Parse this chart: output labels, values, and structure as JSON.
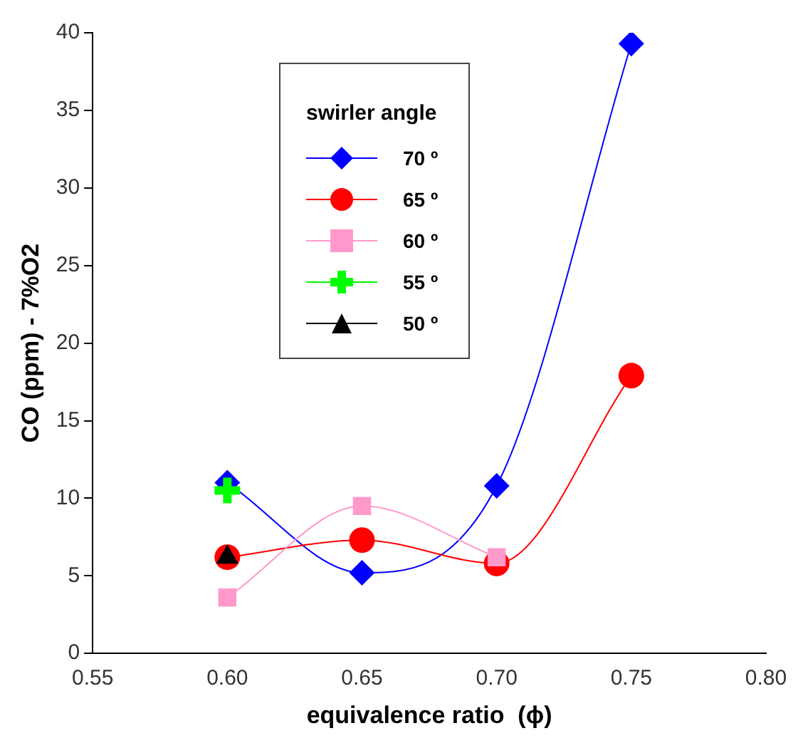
{
  "chart_data": {
    "type": "line",
    "xlabel": "equivalence ratio  (ϕ)",
    "ylabel": "CO (ppm) - 7%O2",
    "legend_title": "swirler angle",
    "legend": "top left",
    "grid": false,
    "xlim": [
      0.55,
      0.8
    ],
    "xticks": [
      {
        "value": 0.55,
        "label": "0.55"
      },
      {
        "value": 0.6,
        "label": "0.60"
      },
      {
        "value": 0.65,
        "label": "0.65"
      },
      {
        "value": 0.7,
        "label": "0.70"
      },
      {
        "value": 0.75,
        "label": "0.75"
      },
      {
        "value": 0.8,
        "label": "0.80"
      }
    ],
    "ylim": [
      0,
      40
    ],
    "yticks": [
      0,
      5,
      10,
      15,
      20,
      25,
      30,
      35,
      40
    ],
    "series": [
      {
        "name": "70 º",
        "color": "#0000ff",
        "marker": "diamond",
        "x": [
          0.6,
          0.65,
          0.7,
          0.75
        ],
        "values": [
          11.0,
          5.2,
          10.8,
          39.3
        ]
      },
      {
        "name": "65 º",
        "color": "#ff0000",
        "marker": "circle",
        "x": [
          0.6,
          0.65,
          0.7,
          0.75
        ],
        "values": [
          6.2,
          7.3,
          5.8,
          17.9
        ]
      },
      {
        "name": "60 º",
        "color": "#ff99cc",
        "marker": "square",
        "x": [
          0.6,
          0.65,
          0.7
        ],
        "values": [
          3.6,
          9.5,
          6.2
        ]
      },
      {
        "name": "55 º",
        "color": "#00ff00",
        "marker": "cross",
        "x": [
          0.6
        ],
        "values": [
          10.5
        ]
      },
      {
        "name": "50 º",
        "color": "#000000",
        "marker": "triangle",
        "x": [
          0.6
        ],
        "values": [
          6.2
        ]
      }
    ]
  }
}
